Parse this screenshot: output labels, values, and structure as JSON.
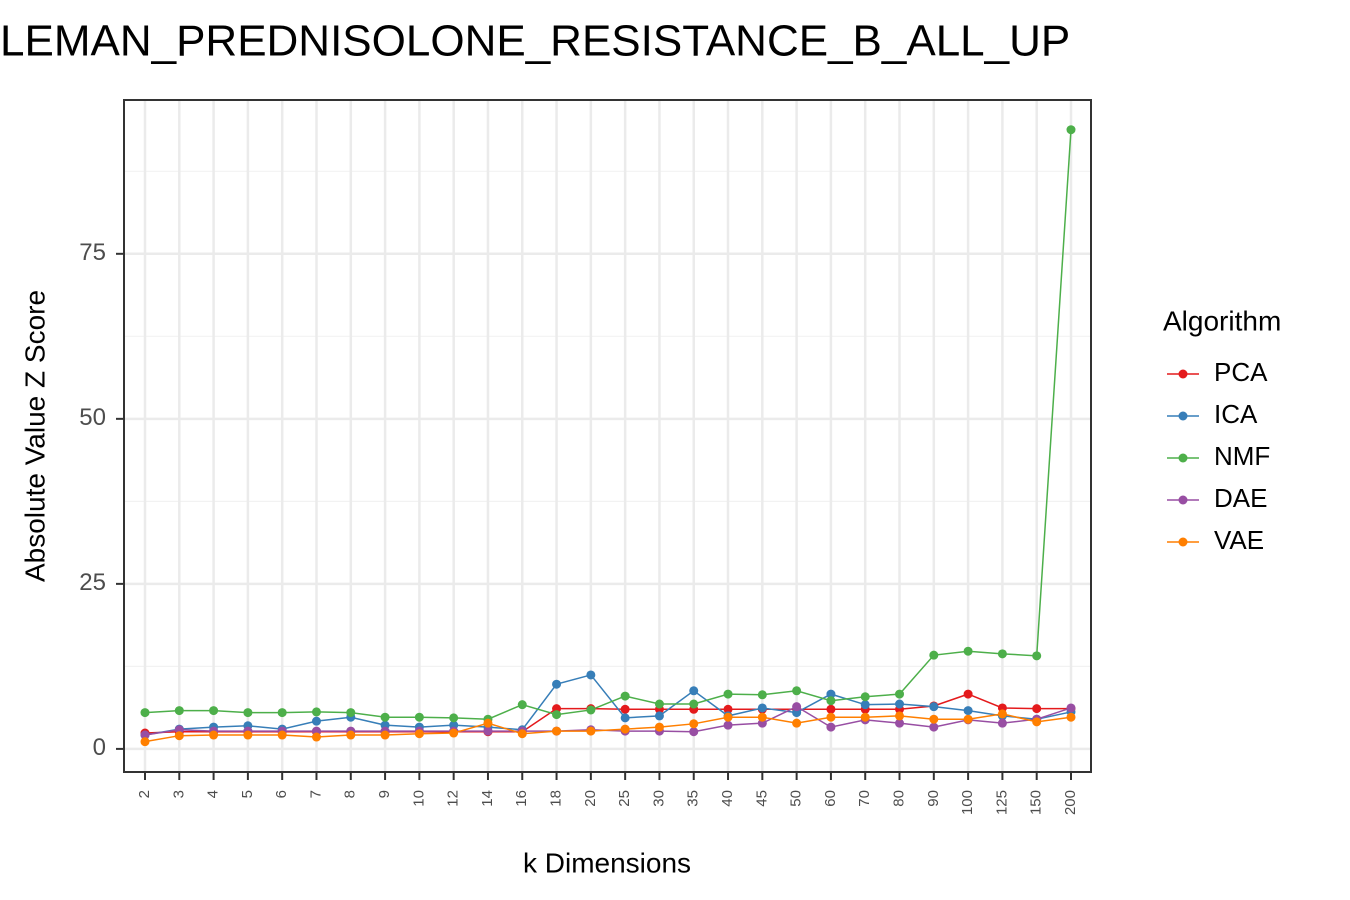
{
  "chart_data": {
    "type": "line",
    "title": "LEMAN_PREDNISOLONE_RESISTANCE_B_ALL_UP",
    "x_label": "k Dimensions",
    "y_label": "Absolute Value Z Score",
    "legend_title": "Algorithm",
    "legend_position": "right",
    "grid": true,
    "categories": [
      "2",
      "3",
      "4",
      "5",
      "6",
      "7",
      "8",
      "9",
      "10",
      "12",
      "14",
      "16",
      "18",
      "20",
      "25",
      "30",
      "35",
      "40",
      "45",
      "50",
      "60",
      "70",
      "80",
      "90",
      "100",
      "125",
      "150",
      "200"
    ],
    "ylim": [
      -3.5,
      98.3
    ],
    "yticks": [
      0,
      25,
      50,
      75
    ],
    "series": [
      {
        "name": "PCA",
        "color": "#e41a1c",
        "values": [
          2.4,
          2.6,
          2.6,
          2.6,
          2.6,
          2.6,
          2.6,
          2.6,
          2.6,
          2.6,
          2.6,
          2.6,
          6.1,
          6.1,
          6.0,
          6.0,
          6.0,
          6.0,
          6.0,
          6.0,
          6.0,
          6.0,
          6.0,
          6.5,
          8.3,
          6.2,
          6.1,
          6.1
        ]
      },
      {
        "name": "ICA",
        "color": "#377eb8",
        "values": [
          2.1,
          3.0,
          3.3,
          3.5,
          3.0,
          4.2,
          4.8,
          3.6,
          3.3,
          3.6,
          3.3,
          2.9,
          9.8,
          11.2,
          4.7,
          5.0,
          8.8,
          5.0,
          6.2,
          5.5,
          8.3,
          6.7,
          6.8,
          6.4,
          5.8,
          5.0,
          4.5,
          5.6
        ]
      },
      {
        "name": "NMF",
        "color": "#4daf4a",
        "values": [
          5.5,
          5.8,
          5.8,
          5.5,
          5.5,
          5.6,
          5.5,
          4.8,
          4.8,
          4.7,
          4.5,
          6.7,
          5.2,
          5.9,
          8.0,
          6.8,
          6.8,
          8.3,
          8.2,
          8.8,
          7.3,
          7.9,
          8.3,
          14.2,
          14.8,
          14.4,
          14.1,
          93.8
        ]
      },
      {
        "name": "DAE",
        "color": "#984ea3",
        "values": [
          2.1,
          2.9,
          2.7,
          2.7,
          2.7,
          2.7,
          2.7,
          2.7,
          2.7,
          2.7,
          2.7,
          2.7,
          2.7,
          2.9,
          2.7,
          2.7,
          2.6,
          3.6,
          3.9,
          6.4,
          3.3,
          4.4,
          3.9,
          3.3,
          4.4,
          3.9,
          4.5,
          6.2
        ]
      },
      {
        "name": "VAE",
        "color": "#ff7f00",
        "values": [
          1.1,
          2.0,
          2.1,
          2.1,
          2.1,
          1.8,
          2.1,
          2.1,
          2.3,
          2.4,
          3.9,
          2.3,
          2.7,
          2.7,
          3.0,
          3.3,
          3.8,
          4.8,
          4.8,
          3.9,
          4.8,
          4.8,
          5.0,
          4.5,
          4.5,
          5.3,
          4.1,
          4.8
        ]
      }
    ]
  }
}
